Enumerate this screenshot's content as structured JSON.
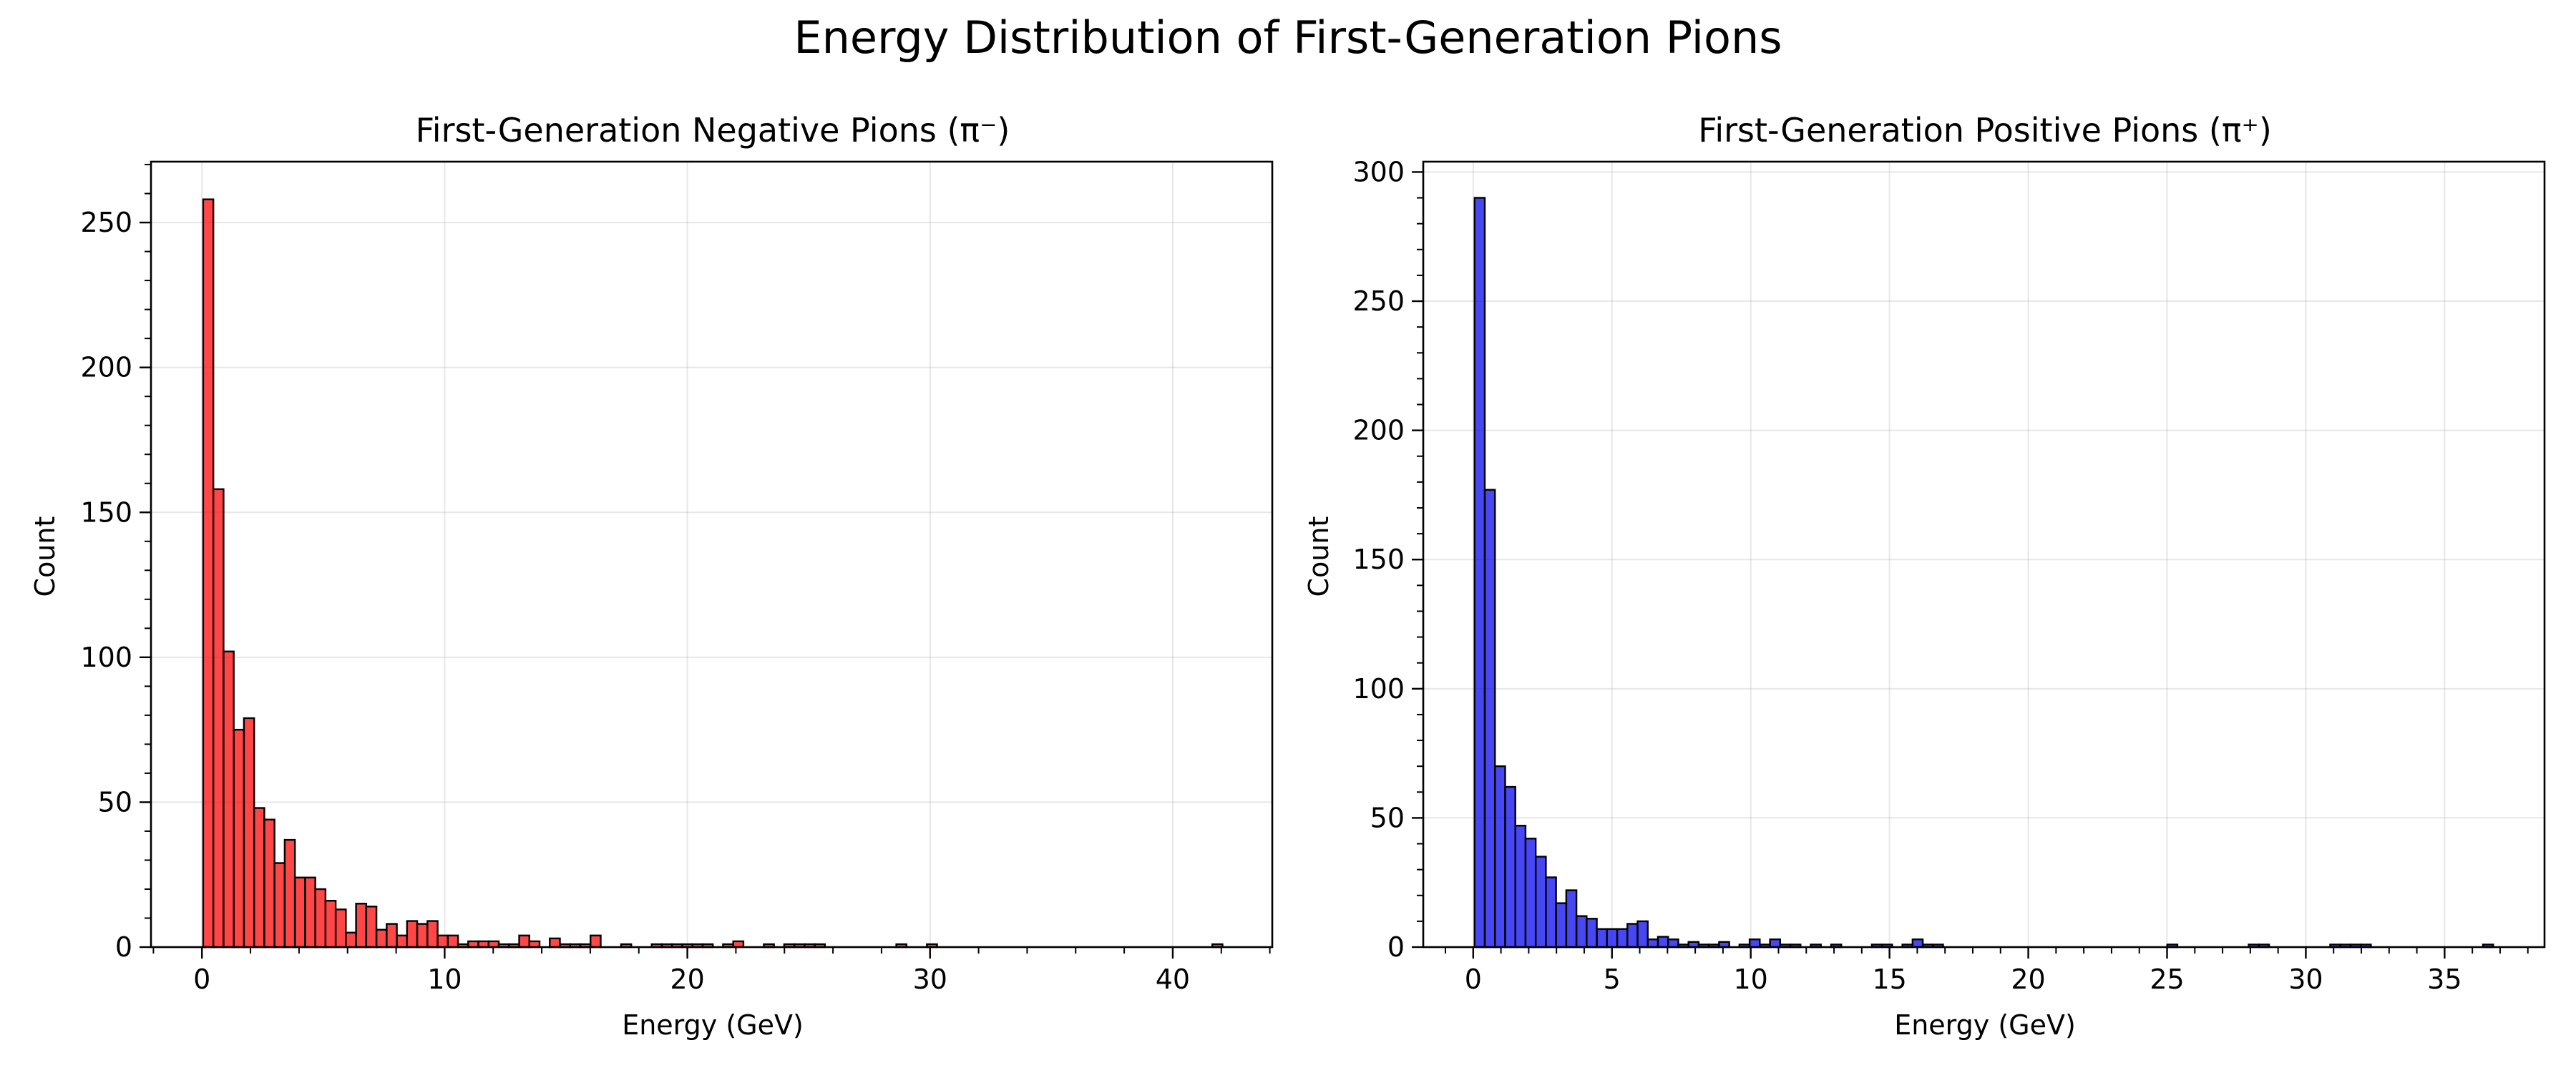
{
  "figure": {
    "suptitle": "Energy Distribution of First-Generation Pions"
  },
  "chart_data": [
    {
      "type": "bar",
      "title": "First-Generation Negative Pions (π⁻)",
      "xlabel": "Energy (GeV)",
      "ylabel": "Count",
      "bar_color": "#ff0000",
      "edge_color": "#000000",
      "grid": true,
      "xlim": [
        -2.1,
        44.1
      ],
      "ylim": [
        0,
        271
      ],
      "xticks": [
        0,
        10,
        20,
        30,
        40
      ],
      "yticks": [
        0,
        50,
        100,
        150,
        200,
        250
      ],
      "bin_start": 0.05,
      "bin_width": 0.42,
      "values": [
        258,
        158,
        102,
        75,
        79,
        48,
        44,
        29,
        37,
        24,
        24,
        20,
        16,
        13,
        5,
        15,
        14,
        6,
        8,
        4,
        9,
        8,
        9,
        4,
        4,
        1,
        2,
        2,
        2,
        1,
        1,
        4,
        2,
        0,
        3,
        1,
        1,
        1,
        4,
        0,
        0,
        1,
        0,
        0,
        1,
        1,
        1,
        1,
        1,
        1,
        0,
        1,
        2,
        0,
        0,
        1,
        0,
        1,
        1,
        1,
        1,
        0,
        0,
        0,
        0,
        0,
        0,
        0,
        1,
        0,
        0,
        1,
        0,
        0,
        0,
        0,
        0,
        0,
        0,
        0,
        0,
        0,
        0,
        0,
        0,
        0,
        0,
        0,
        0,
        0,
        0,
        0,
        0,
        0,
        0,
        0,
        0,
        0,
        0,
        1
      ]
    },
    {
      "type": "bar",
      "title": "First-Generation Positive Pions (π⁺)",
      "xlabel": "Energy (GeV)",
      "ylabel": "Count",
      "bar_color": "#0000ee",
      "edge_color": "#000000",
      "grid": true,
      "xlim": [
        -1.8,
        38.6
      ],
      "ylim": [
        0,
        304
      ],
      "xticks": [
        0,
        5,
        10,
        15,
        20,
        25,
        30,
        35
      ],
      "yticks": [
        0,
        50,
        100,
        150,
        200,
        250,
        300
      ],
      "bin_start": 0.05,
      "bin_width": 0.367,
      "values": [
        290,
        177,
        70,
        62,
        47,
        42,
        35,
        27,
        17,
        22,
        12,
        11,
        7,
        7,
        7,
        9,
        10,
        3,
        4,
        3,
        1,
        2,
        1,
        1,
        2,
        0,
        1,
        3,
        1,
        3,
        1,
        1,
        0,
        1,
        0,
        1,
        0,
        0,
        0,
        1,
        1,
        0,
        1,
        3,
        1,
        1,
        0,
        0,
        0,
        0,
        0,
        0,
        0,
        0,
        0,
        0,
        0,
        0,
        0,
        0,
        0,
        0,
        0,
        0,
        0,
        0,
        0,
        0,
        1,
        0,
        0,
        0,
        0,
        0,
        0,
        0,
        1,
        1,
        0,
        0,
        0,
        0,
        0,
        0,
        1,
        1,
        1,
        1,
        0,
        0,
        0,
        0,
        0,
        0,
        0,
        0,
        0,
        0,
        0,
        1
      ]
    }
  ]
}
